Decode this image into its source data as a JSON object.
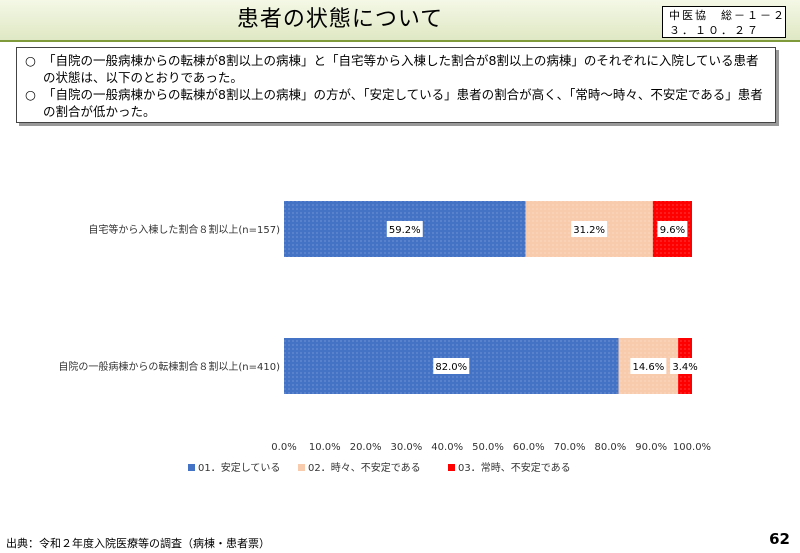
{
  "header": {
    "title": "患者の状態について",
    "badge_line1": "中医協　総－１－２",
    "badge_line2": "３．１０．２７"
  },
  "summary": {
    "marker": "○",
    "bullets": [
      "「自院の一般病棟からの転棟が8割以上の病棟」と「自宅等から入棟した割合が8割以上の病棟」のそれぞれに入院している患者の状態は、以下のとおりであった。",
      "「自院の一般病棟からの転棟が8割以上の病棟」の方が、「安定している」患者の割合が高く、「常時～時々、不安定である」患者の割合が低かった。"
    ]
  },
  "chart_data": {
    "type": "bar",
    "orientation": "horizontal",
    "stacked": true,
    "categories": [
      "自宅等から入棟した割合８割以上(n=157)",
      "自院の一般病棟からの転棟割合８割以上(n=410)"
    ],
    "series": [
      {
        "name": "01．安定している",
        "values": [
          59.2,
          82.0
        ],
        "labels": [
          "59.2%",
          "82.0%"
        ],
        "color": "#4472c4"
      },
      {
        "name": "02．時々、不安定である",
        "values": [
          31.2,
          14.6
        ],
        "labels": [
          "31.2%",
          "14.6%"
        ],
        "color": "#f8cbad"
      },
      {
        "name": "03．常時、不安定である",
        "values": [
          9.6,
          3.4
        ],
        "labels": [
          "9.6%",
          "3.4%"
        ],
        "color": "#ff0000"
      }
    ],
    "xlim": [
      0,
      100
    ],
    "x_ticks": [
      "0.0%",
      "10.0%",
      "20.0%",
      "30.0%",
      "40.0%",
      "50.0%",
      "60.0%",
      "70.0%",
      "80.0%",
      "90.0%",
      "100.0%"
    ],
    "grid": false,
    "legend_position": "bottom"
  },
  "footer": {
    "source": "出典：令和２年度入院医療等の調査（病棟・患者票）",
    "page": "62"
  }
}
